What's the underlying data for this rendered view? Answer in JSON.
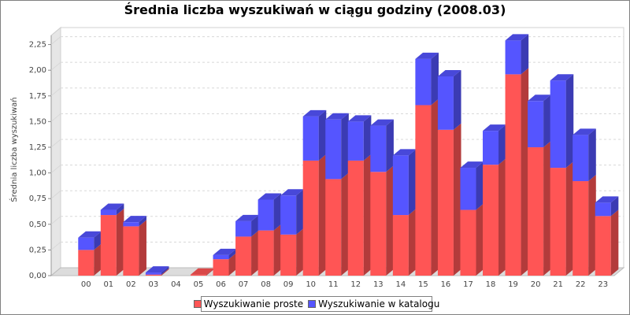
{
  "chart_data": {
    "type": "bar",
    "stacked": true,
    "style": "3d",
    "title": "Średnia liczba wyszukiwań w ciągu godziny (2008.03)",
    "xlabel": "",
    "ylabel": "Średnia liczba wyszukiwań",
    "ylim": [
      0,
      2.4
    ],
    "yticks": [
      "0,00",
      "0,25",
      "0,50",
      "0,75",
      "1,00",
      "1,25",
      "1,50",
      "1,75",
      "2,00",
      "2,25"
    ],
    "ytick_values": [
      0,
      0.25,
      0.5,
      0.75,
      1.0,
      1.25,
      1.5,
      1.75,
      2.0,
      2.25
    ],
    "grid": true,
    "legend_position": "bottom",
    "categories": [
      "00",
      "01",
      "02",
      "03",
      "04",
      "05",
      "06",
      "07",
      "08",
      "09",
      "10",
      "11",
      "12",
      "13",
      "14",
      "15",
      "16",
      "17",
      "18",
      "19",
      "20",
      "21",
      "22",
      "23"
    ],
    "series": [
      {
        "name": "Wyszukiwanie proste",
        "color": "#ff5555",
        "values": [
          0.25,
          0.59,
          0.48,
          0.01,
          0.0,
          0.01,
          0.16,
          0.38,
          0.44,
          0.4,
          1.12,
          0.94,
          1.12,
          1.01,
          0.59,
          1.66,
          1.42,
          0.64,
          1.08,
          1.96,
          1.25,
          1.05,
          0.92,
          0.58
        ]
      },
      {
        "name": "Wyszukiwanie w katalogu",
        "color": "#5555ff",
        "values": [
          0.12,
          0.05,
          0.04,
          0.02,
          0.0,
          0.0,
          0.04,
          0.15,
          0.3,
          0.38,
          0.43,
          0.58,
          0.38,
          0.45,
          0.58,
          0.45,
          0.52,
          0.41,
          0.33,
          0.33,
          0.45,
          0.85,
          0.45,
          0.13
        ]
      }
    ]
  }
}
